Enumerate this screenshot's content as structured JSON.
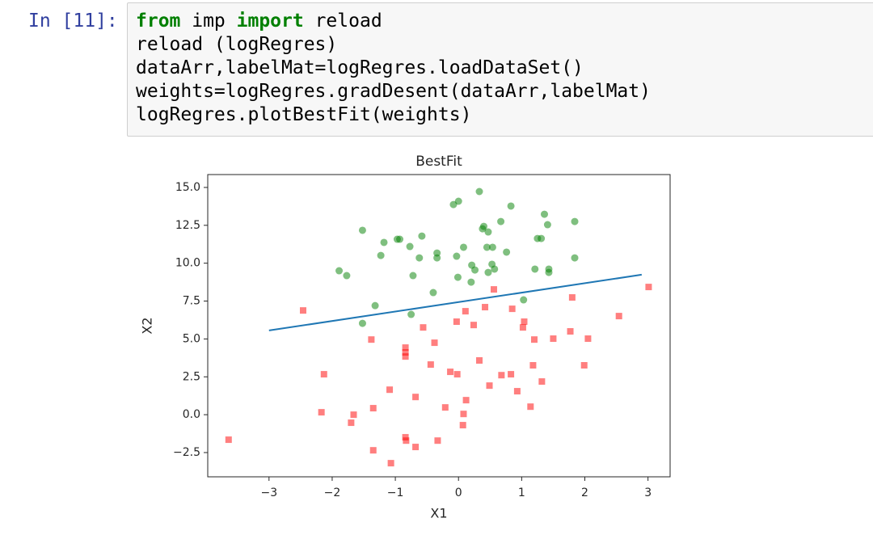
{
  "prompt": "In [11]:",
  "code": {
    "lines": [
      [
        {
          "text": "from",
          "keyword": true
        },
        " imp ",
        {
          "text": "import",
          "keyword": true
        },
        " reload"
      ],
      [
        "reload (logRegres)"
      ],
      [
        "dataArr,labelMat=logRegres.loadDataSet()"
      ],
      [
        "weights=logRegres.gradDesent(dataArr,labelMat)"
      ],
      [
        "logRegres.plotBestFit(weights)"
      ]
    ]
  },
  "chart_data": {
    "type": "scatter",
    "title": "BestFit",
    "x_label": "X1",
    "y_label": "X2",
    "xlim": [
      -3.97,
      3.35
    ],
    "ylim": [
      -4.1,
      15.85
    ],
    "xticks": [
      {
        "value": -3,
        "label": "−3"
      },
      {
        "value": -2,
        "label": "−2"
      },
      {
        "value": -1,
        "label": "−1"
      },
      0,
      1,
      2,
      3
    ],
    "yticks": [
      {
        "value": -2.5,
        "label": "−2.5"
      },
      {
        "value": 0,
        "label": "0.0"
      },
      {
        "value": 2.5,
        "label": "2.5"
      },
      {
        "value": 5,
        "label": "5.0"
      },
      {
        "value": 7.5,
        "label": "7.5"
      },
      {
        "value": 10,
        "label": "10.0"
      },
      {
        "value": 12.5,
        "label": "12.5"
      },
      {
        "value": 15,
        "label": "15.0"
      }
    ],
    "grid": false,
    "series": [
      {
        "type": "scatter",
        "marker": "square",
        "color": "#ff0000",
        "x": [
          -3.64,
          -2.46,
          -2.13,
          -2.17,
          -1.66,
          -1.7,
          -1.38,
          -1.35,
          -1.35,
          -1.09,
          -1.07,
          -0.84,
          -0.84,
          -0.84,
          -0.84,
          -0.83,
          -0.68,
          -0.68,
          -0.56,
          -0.44,
          -0.38,
          -0.33,
          -0.21,
          -0.13,
          -0.03,
          -0.02,
          0.08,
          0.07,
          0.11,
          0.12,
          0.24,
          0.33,
          0.42,
          0.49,
          0.56,
          0.68,
          0.83,
          0.93,
          0.85,
          1.02,
          1.04,
          1.14,
          1.18,
          1.2,
          1.32,
          1.5,
          1.77,
          1.8,
          1.99,
          2.05,
          2.54,
          3.01
        ],
        "values": [
          -1.65,
          6.88,
          2.67,
          0.16,
          0.0,
          -0.53,
          4.96,
          0.43,
          -2.35,
          1.65,
          -3.2,
          4.43,
          4.11,
          3.84,
          -1.49,
          -1.71,
          1.17,
          -2.13,
          5.76,
          3.31,
          4.75,
          -1.71,
          0.48,
          2.83,
          6.14,
          2.67,
          0.05,
          -0.69,
          6.83,
          0.96,
          5.92,
          3.58,
          7.1,
          1.92,
          8.27,
          2.61,
          2.67,
          1.55,
          6.99,
          5.76,
          6.14,
          0.53,
          3.26,
          4.96,
          2.19,
          5.02,
          5.5,
          7.74,
          3.26,
          5.02,
          6.51,
          8.43
        ]
      },
      {
        "type": "scatter",
        "marker": "circle",
        "color": "#008000",
        "x": [
          0.0,
          -0.08,
          0.33,
          0.83,
          1.36,
          1.84,
          0.67,
          0.38,
          0.4,
          1.41,
          0.47,
          -1.52,
          -0.93,
          -0.97,
          -0.58,
          -1.18,
          -0.77,
          0.08,
          0.45,
          1.25,
          1.31,
          -0.34,
          -0.34,
          -0.62,
          -1.23,
          -0.03,
          0.54,
          0.76,
          0.21,
          0.53,
          0.57,
          1.84,
          -1.89,
          -1.77,
          -0.72,
          -0.01,
          0.2,
          0.26,
          0.47,
          1.21,
          1.43,
          1.43,
          -0.4,
          -1.32,
          -0.75,
          1.03,
          -1.52
        ],
        "values": [
          14.09,
          13.87,
          14.73,
          13.77,
          13.23,
          12.75,
          12.75,
          12.27,
          12.43,
          12.54,
          12.06,
          12.17,
          11.58,
          11.58,
          11.79,
          11.37,
          11.1,
          11.05,
          11.05,
          11.63,
          11.63,
          10.67,
          10.35,
          10.35,
          10.51,
          10.46,
          11.05,
          10.73,
          9.87,
          9.93,
          9.61,
          10.35,
          9.5,
          9.18,
          9.18,
          9.07,
          8.75,
          9.55,
          9.39,
          9.61,
          9.61,
          9.39,
          8.06,
          7.2,
          6.62,
          7.58,
          6.03
        ]
      },
      {
        "type": "line",
        "color": "#1f77b4",
        "x": [
          -3.0,
          2.9
        ],
        "values": [
          5.56,
          9.24
        ]
      }
    ]
  }
}
